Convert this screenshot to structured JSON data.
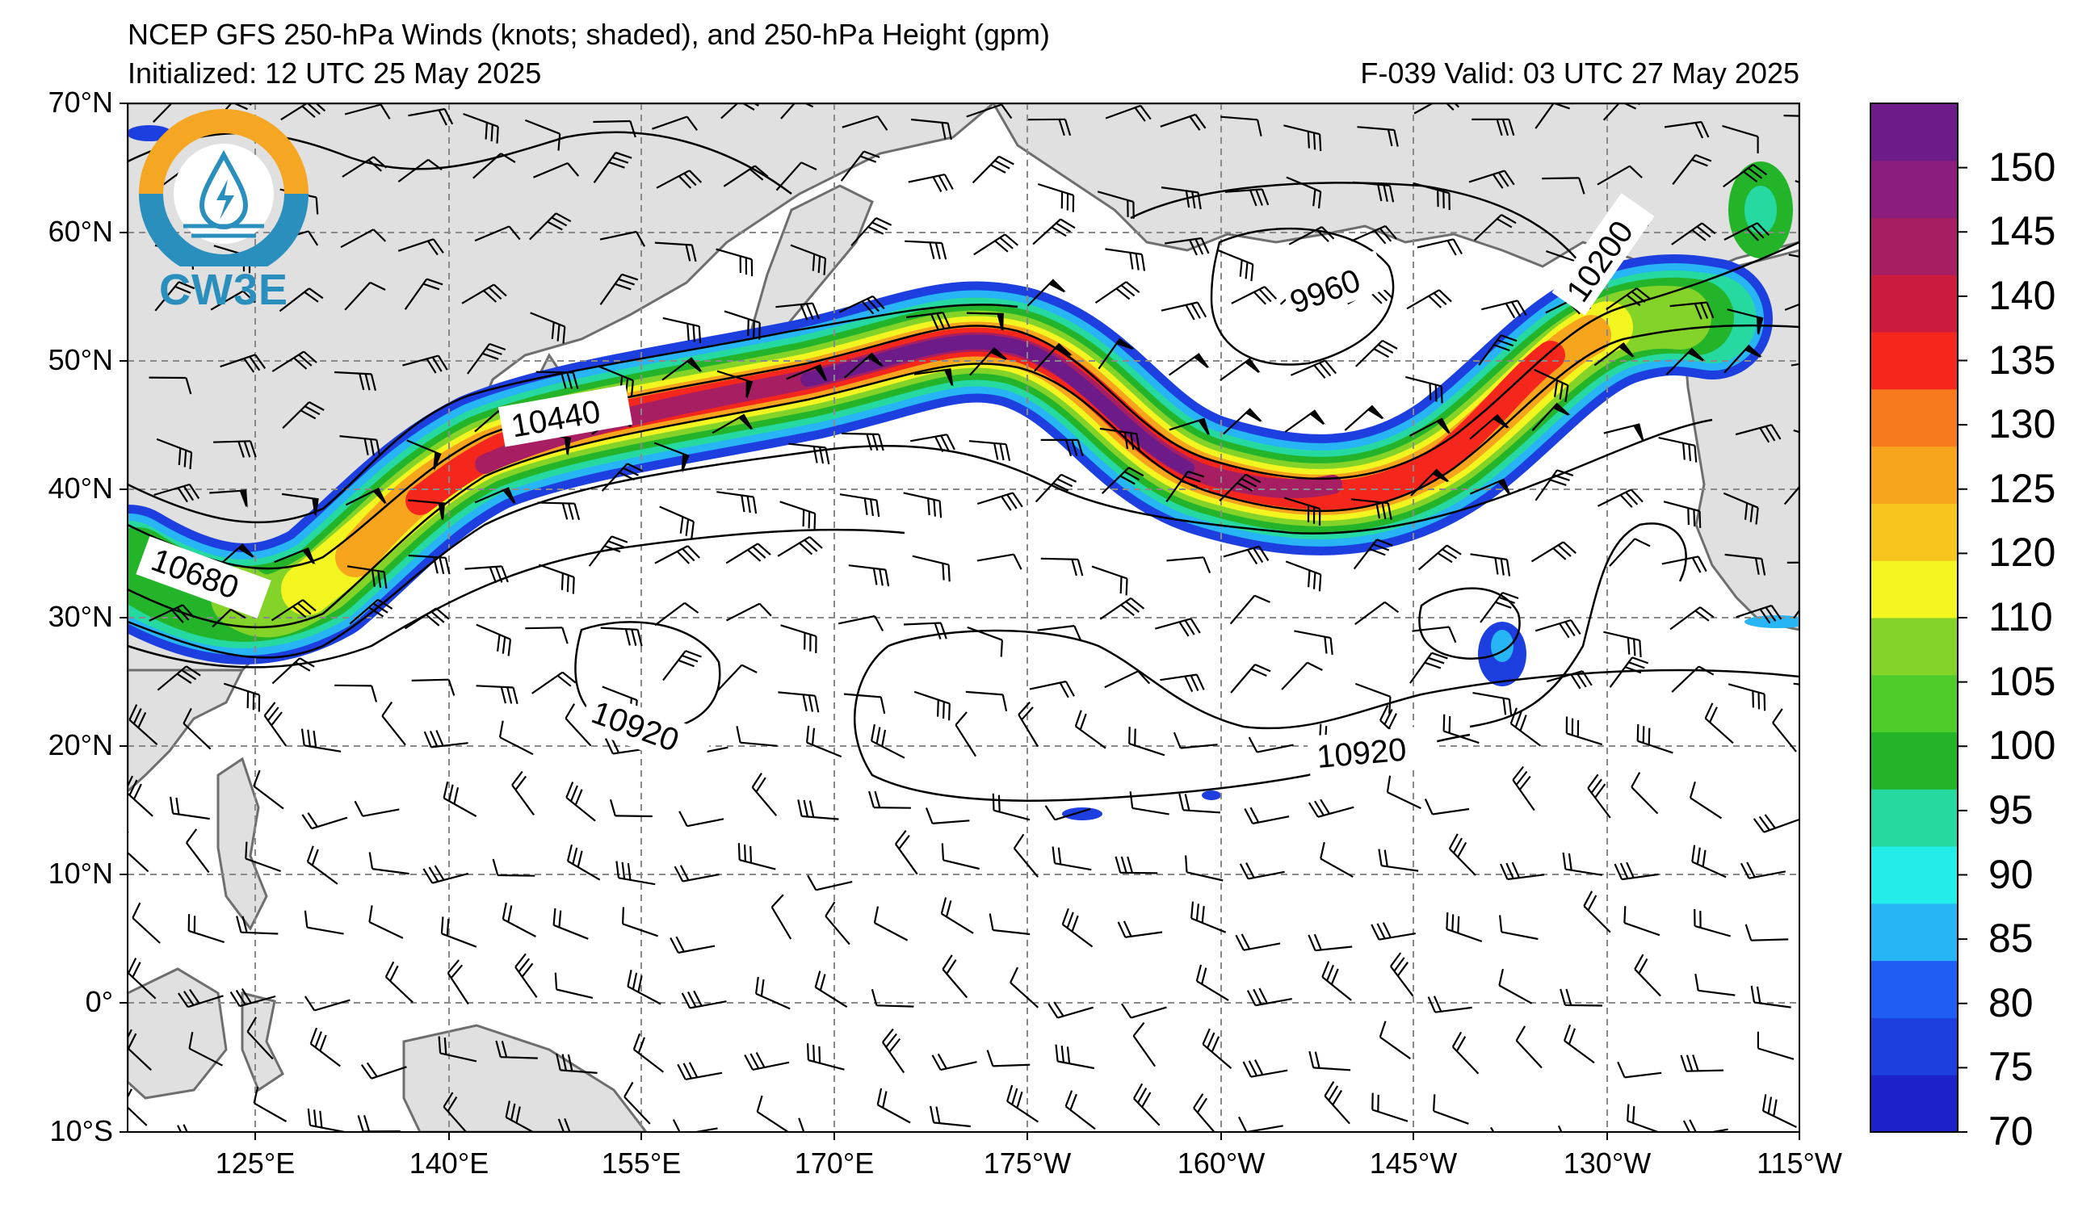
{
  "title": "NCEP GFS 250-hPa Winds (knots; shaded), and 250-hPa Height (gpm)",
  "initialized": "Initialized: 12 UTC 25 May 2025",
  "valid": "F-039  Valid: 03 UTC 27 May 2025",
  "logo_text": "CW3E",
  "lat_labels": [
    "70°N",
    "60°N",
    "50°N",
    "40°N",
    "30°N",
    "20°N",
    "10°N",
    "0°",
    "10°S"
  ],
  "lon_labels": [
    "125°E",
    "140°E",
    "155°E",
    "170°E",
    "175°W",
    "160°W",
    "145°W",
    "130°W",
    "115°W"
  ],
  "colorbar": {
    "ticks": [
      "70",
      "75",
      "80",
      "85",
      "90",
      "95",
      "100",
      "105",
      "110",
      "120",
      "125",
      "130",
      "135",
      "140",
      "145",
      "150"
    ],
    "colors": [
      "#1b22c9",
      "#1d3fe0",
      "#1f5df5",
      "#27b5f5",
      "#22ede8",
      "#25d9a0",
      "#23b42a",
      "#4fcb2a",
      "#84d329",
      "#f3f520",
      "#f7c61e",
      "#f7a51c",
      "#f77a1f",
      "#f5271c",
      "#cc1b3c",
      "#a71f62",
      "#8a1d7d",
      "#6e1b8a"
    ]
  },
  "contour_labels": [
    "10680",
    "10440",
    "10920",
    "9960",
    "10200",
    "10920"
  ],
  "colors": {
    "land": "#e0e0e0",
    "coast": "#6e6e6e",
    "grid": "#8a8a8a",
    "contour": "#000000",
    "logo_ring_top": "#f5a623",
    "logo_ring_bottom": "#2b8fbd"
  }
}
